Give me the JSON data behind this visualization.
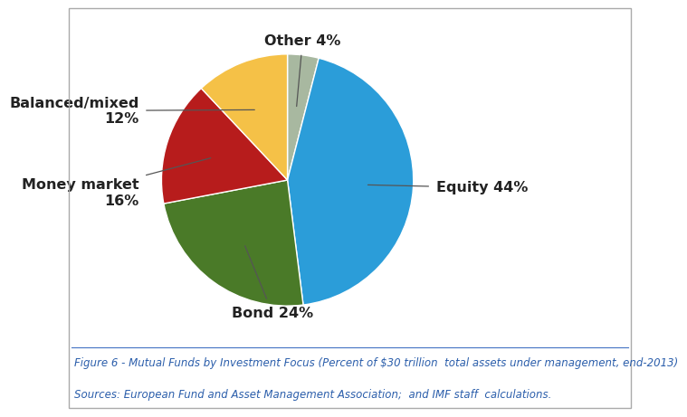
{
  "slices": [
    {
      "label": "Other 4%",
      "value": 4,
      "color": "#A8B8A0"
    },
    {
      "label": "Equity 44%",
      "value": 44,
      "color": "#2B9DD9"
    },
    {
      "label": "Bond 24%",
      "value": 24,
      "color": "#4A7A28"
    },
    {
      "label": "Money market 16%",
      "value": 16,
      "color": "#B71C1C"
    },
    {
      "label": "Balanced/mixed 12%",
      "value": 12,
      "color": "#F5C147"
    }
  ],
  "startangle": 90,
  "figure_caption": "Figure 6 - Mutual Funds by Investment Focus (Percent of $30 trillion  total assets under management, end-2013)",
  "sources_caption": "Sources: European Fund and Asset Management Association;  and IMF staff  calculations.",
  "caption_color": "#2B5EAB",
  "caption_fontsize": 8.5,
  "label_fontsize": 11.5,
  "label_fontweight": "bold",
  "label_color": "#222222",
  "bg_color": "#FFFFFF",
  "border_color": "#AAAAAA"
}
